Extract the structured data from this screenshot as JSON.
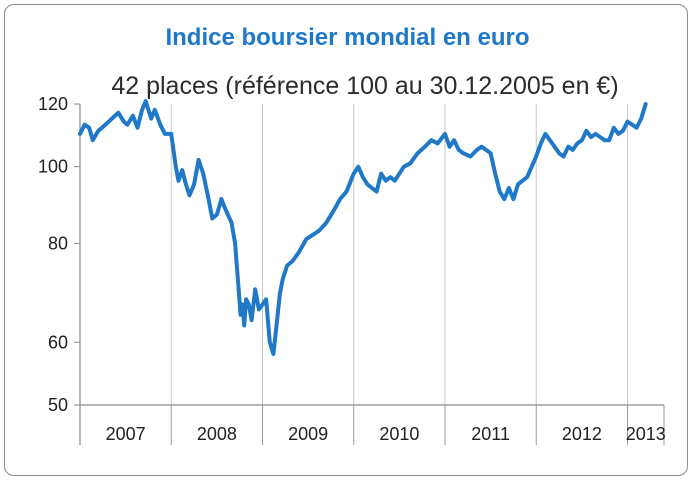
{
  "chart_data": {
    "type": "line",
    "title": "Indice boursier mondial en euro",
    "subtitle": "42 places (référence 100 au 30.12.2005 en €)",
    "xlabel": "",
    "ylabel": "",
    "x_axis": {
      "categories": [
        "2007",
        "2008",
        "2009",
        "2010",
        "2011",
        "2012",
        "2013"
      ],
      "range": [
        2007.0,
        2013.4
      ]
    },
    "y_axis": {
      "scale": "log",
      "ticks": [
        50,
        60,
        80,
        100,
        120
      ],
      "range": [
        50,
        120
      ]
    },
    "grid": {
      "vertical": true,
      "horizontal": false
    },
    "legend": "none",
    "series": [
      {
        "color": "#1f78c8",
        "x": [
          2007.0,
          2007.05,
          2007.1,
          2007.14,
          2007.2,
          2007.28,
          2007.35,
          2007.42,
          2007.48,
          2007.52,
          2007.58,
          2007.63,
          2007.68,
          2007.72,
          2007.78,
          2007.82,
          2007.88,
          2007.93,
          2008.0,
          2008.05,
          2008.08,
          2008.12,
          2008.16,
          2008.2,
          2008.25,
          2008.3,
          2008.35,
          2008.4,
          2008.45,
          2008.5,
          2008.55,
          2008.6,
          2008.66,
          2008.7,
          2008.73,
          2008.76,
          2008.78,
          2008.8,
          2008.82,
          2008.85,
          2008.88,
          2008.92,
          2008.96,
          2009.0,
          2009.04,
          2009.08,
          2009.12,
          2009.16,
          2009.19,
          2009.22,
          2009.27,
          2009.33,
          2009.4,
          2009.48,
          2009.55,
          2009.62,
          2009.7,
          2009.78,
          2009.85,
          2009.92,
          2010.0,
          2010.05,
          2010.1,
          2010.15,
          2010.2,
          2010.25,
          2010.3,
          2010.35,
          2010.4,
          2010.45,
          2010.5,
          2010.55,
          2010.62,
          2010.7,
          2010.78,
          2010.85,
          2010.92,
          2011.0,
          2011.05,
          2011.1,
          2011.15,
          2011.2,
          2011.28,
          2011.35,
          2011.4,
          2011.45,
          2011.5,
          2011.55,
          2011.6,
          2011.65,
          2011.7,
          2011.75,
          2011.8,
          2011.85,
          2011.9,
          2011.95,
          2012.0,
          2012.05,
          2012.1,
          2012.15,
          2012.2,
          2012.25,
          2012.3,
          2012.35,
          2012.4,
          2012.45,
          2012.5,
          2012.55,
          2012.6,
          2012.65,
          2012.7,
          2012.75,
          2012.8,
          2012.85,
          2012.9,
          2012.95,
          2013.0,
          2013.05,
          2013.1,
          2013.15,
          2013.2
        ],
        "values": [
          110,
          113,
          112,
          108,
          111,
          113,
          115,
          117,
          114,
          113,
          116,
          112,
          118,
          121,
          115,
          118,
          113,
          110,
          110,
          100,
          96,
          99,
          95,
          92,
          95,
          102,
          98,
          92,
          86,
          87,
          91,
          88,
          85,
          80,
          72,
          65,
          67,
          63,
          68,
          67,
          64,
          70,
          66,
          67,
          68,
          60,
          58,
          64,
          69,
          72,
          75,
          76,
          78,
          81,
          82,
          83,
          85,
          88,
          91,
          93,
          98,
          100,
          97,
          95,
          94,
          93,
          98,
          96,
          97,
          96,
          98,
          100,
          101,
          104,
          106,
          108,
          107,
          110,
          106,
          108,
          105,
          104,
          103,
          105,
          106,
          105,
          104,
          98,
          93,
          91,
          94,
          91,
          95,
          96,
          97,
          100,
          103,
          107,
          110,
          108,
          106,
          104,
          103,
          106,
          105,
          107,
          108,
          111,
          109,
          110,
          109,
          108,
          108,
          112,
          110,
          111,
          114,
          113,
          112,
          115,
          120
        ]
      }
    ]
  }
}
